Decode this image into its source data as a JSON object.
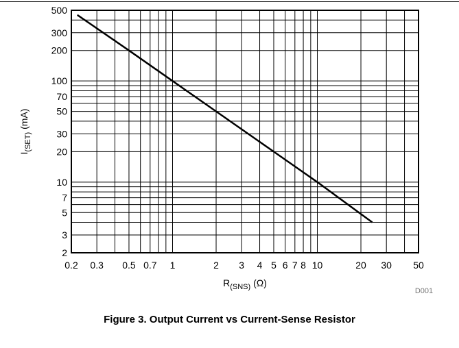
{
  "chart_data": {
    "type": "line",
    "x_scale": "log",
    "y_scale": "log",
    "xlim": [
      0.2,
      50
    ],
    "ylim": [
      2,
      500
    ],
    "grid": true,
    "x_ticks": [
      0.2,
      0.3,
      0.5,
      0.7,
      1,
      2,
      3,
      4,
      5,
      6,
      7,
      8,
      10,
      20,
      30,
      50
    ],
    "x_tick_labels": [
      "0.2",
      "0.3",
      "0.5",
      "0.7",
      "1",
      "2",
      "3",
      "4",
      "5",
      "6",
      "7",
      "8",
      "10",
      "20",
      "30",
      "50"
    ],
    "y_ticks": [
      2,
      3,
      5,
      7,
      10,
      20,
      30,
      50,
      70,
      100,
      200,
      300,
      500
    ],
    "y_tick_labels": [
      "2",
      "3",
      "5",
      "7",
      "10",
      "20",
      "30",
      "50",
      "70",
      "100",
      "200",
      "300",
      "500"
    ],
    "xlabel": {
      "main": "R",
      "sub": "(SNS)",
      "unit": "(Ω)"
    },
    "ylabel": {
      "main": "I",
      "sub": "(SET)",
      "unit": "(mA)"
    },
    "series": [
      {
        "x": [
          0.22,
          0.5,
          1,
          2,
          5,
          10,
          24
        ],
        "y": [
          450,
          200,
          100,
          50,
          20,
          10,
          4
        ],
        "color": "#000000"
      }
    ],
    "code_label": "D001"
  },
  "caption": "Figure 3. Output Current vs Current-Sense Resistor"
}
